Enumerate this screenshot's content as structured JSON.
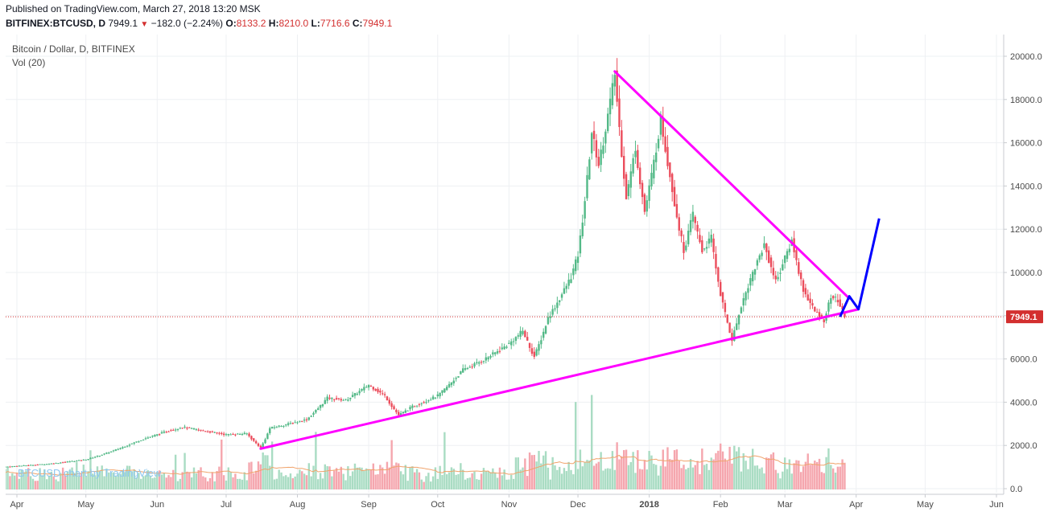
{
  "header": {
    "published": "Published on TradingView.com, March 27, 2018 13:20 MSK",
    "symbol": "BITFINEX:BTCUSD, D",
    "last": "7949.1",
    "change": "−182.0 (−2.24%)",
    "o_label": "O:",
    "o_value": "8133.2",
    "h_label": "H:",
    "h_value": "8210.0",
    "l_label": "L:",
    "l_value": "7716.6",
    "c_label": "C:",
    "c_value": "7949.1"
  },
  "legend": {
    "title": "Bitcoin / Dollar, D, BITFINEX",
    "volume": "Vol (20)"
  },
  "watermark": "BTCUSD chart by TradingView",
  "price_label": "7949.1",
  "colors": {
    "up": "#53b987",
    "down": "#eb4d5c",
    "volume_up": "#a9dcc3",
    "volume_down": "#f5a6ae",
    "volume_ma": "#f0a36b",
    "trendline": "#ff00ff",
    "projection": "#0000ff",
    "price_line": "#d32f2f"
  },
  "chart_data": {
    "type": "candlestick",
    "title": "Bitcoin / Dollar, D, BITFINEX",
    "x_tick_labels": [
      "Apr",
      "May",
      "Jun",
      "Jul",
      "Aug",
      "Sep",
      "Oct",
      "Nov",
      "Dec",
      "2018",
      "Feb",
      "Mar",
      "Apr",
      "May",
      "Jun"
    ],
    "y_tick_labels": [
      "0.0",
      "2000.0",
      "4000.0",
      "6000.0",
      "8000.0",
      "10000.0",
      "12000.0",
      "14000.0",
      "16000.0",
      "18000.0",
      "20000.0"
    ],
    "ylim": [
      0,
      20500
    ],
    "x_axis": "daily, Apr 2017 – Jun 2018",
    "anchors": [
      {
        "date": "2017-03-25",
        "price": 1000
      },
      {
        "date": "2017-04-15",
        "price": 1150
      },
      {
        "date": "2017-05-01",
        "price": 1350
      },
      {
        "date": "2017-05-20",
        "price": 2050
      },
      {
        "date": "2017-05-26",
        "price": 2300
      },
      {
        "date": "2017-06-05",
        "price": 2650
      },
      {
        "date": "2017-06-12",
        "price": 2850
      },
      {
        "date": "2017-06-20",
        "price": 2700
      },
      {
        "date": "2017-07-01",
        "price": 2500
      },
      {
        "date": "2017-07-10",
        "price": 2550
      },
      {
        "date": "2017-07-16",
        "price": 1900
      },
      {
        "date": "2017-07-20",
        "price": 2800
      },
      {
        "date": "2017-08-05",
        "price": 3200
      },
      {
        "date": "2017-08-14",
        "price": 4200
      },
      {
        "date": "2017-08-22",
        "price": 4100
      },
      {
        "date": "2017-09-01",
        "price": 4800
      },
      {
        "date": "2017-09-08",
        "price": 4300
      },
      {
        "date": "2017-09-14",
        "price": 3400
      },
      {
        "date": "2017-09-20",
        "price": 3800
      },
      {
        "date": "2017-10-01",
        "price": 4300
      },
      {
        "date": "2017-10-12",
        "price": 5500
      },
      {
        "date": "2017-10-20",
        "price": 5900
      },
      {
        "date": "2017-11-01",
        "price": 6700
      },
      {
        "date": "2017-11-07",
        "price": 7300
      },
      {
        "date": "2017-11-12",
        "price": 6100
      },
      {
        "date": "2017-11-18",
        "price": 7900
      },
      {
        "date": "2017-11-28",
        "price": 9800
      },
      {
        "date": "2017-12-01",
        "price": 10800
      },
      {
        "date": "2017-12-07",
        "price": 16500
      },
      {
        "date": "2017-12-10",
        "price": 15000
      },
      {
        "date": "2017-12-17",
        "price": 19200
      },
      {
        "date": "2017-12-22",
        "price": 13500
      },
      {
        "date": "2017-12-26",
        "price": 15800
      },
      {
        "date": "2017-12-30",
        "price": 12800
      },
      {
        "date": "2018-01-06",
        "price": 17100
      },
      {
        "date": "2018-01-10",
        "price": 14500
      },
      {
        "date": "2018-01-16",
        "price": 11000
      },
      {
        "date": "2018-01-20",
        "price": 12700
      },
      {
        "date": "2018-01-24",
        "price": 11000
      },
      {
        "date": "2018-01-28",
        "price": 11600
      },
      {
        "date": "2018-02-01",
        "price": 9000
      },
      {
        "date": "2018-02-06",
        "price": 6900
      },
      {
        "date": "2018-02-10",
        "price": 8500
      },
      {
        "date": "2018-02-15",
        "price": 10000
      },
      {
        "date": "2018-02-20",
        "price": 11300
      },
      {
        "date": "2018-02-25",
        "price": 9600
      },
      {
        "date": "2018-03-04",
        "price": 11500
      },
      {
        "date": "2018-03-09",
        "price": 9200
      },
      {
        "date": "2018-03-14",
        "price": 8200
      },
      {
        "date": "2018-03-18",
        "price": 7800
      },
      {
        "date": "2018-03-21",
        "price": 8900
      },
      {
        "date": "2018-03-24",
        "price": 8700
      },
      {
        "date": "2018-03-27",
        "price": 7949.1
      }
    ],
    "last_candle": {
      "date": "2018-03-27",
      "open": 8133.2,
      "high": 8210.0,
      "low": 7716.6,
      "close": 7949.1,
      "change": -182.0,
      "change_pct": -2.24
    },
    "annotations": {
      "support_line": [
        {
          "date": "2017-07-16",
          "price": 1850
        },
        {
          "date": "2018-04-02",
          "price": 8300
        }
      ],
      "resistance_line": [
        {
          "date": "2017-12-17",
          "price": 19300
        },
        {
          "date": "2018-03-29",
          "price": 8800
        }
      ],
      "projection_path": [
        {
          "date": "2018-03-25",
          "price": 7950
        },
        {
          "date": "2018-03-29",
          "price": 8900
        },
        {
          "date": "2018-04-02",
          "price": 8300
        },
        {
          "date": "2018-04-11",
          "price": 12500
        }
      ]
    }
  }
}
